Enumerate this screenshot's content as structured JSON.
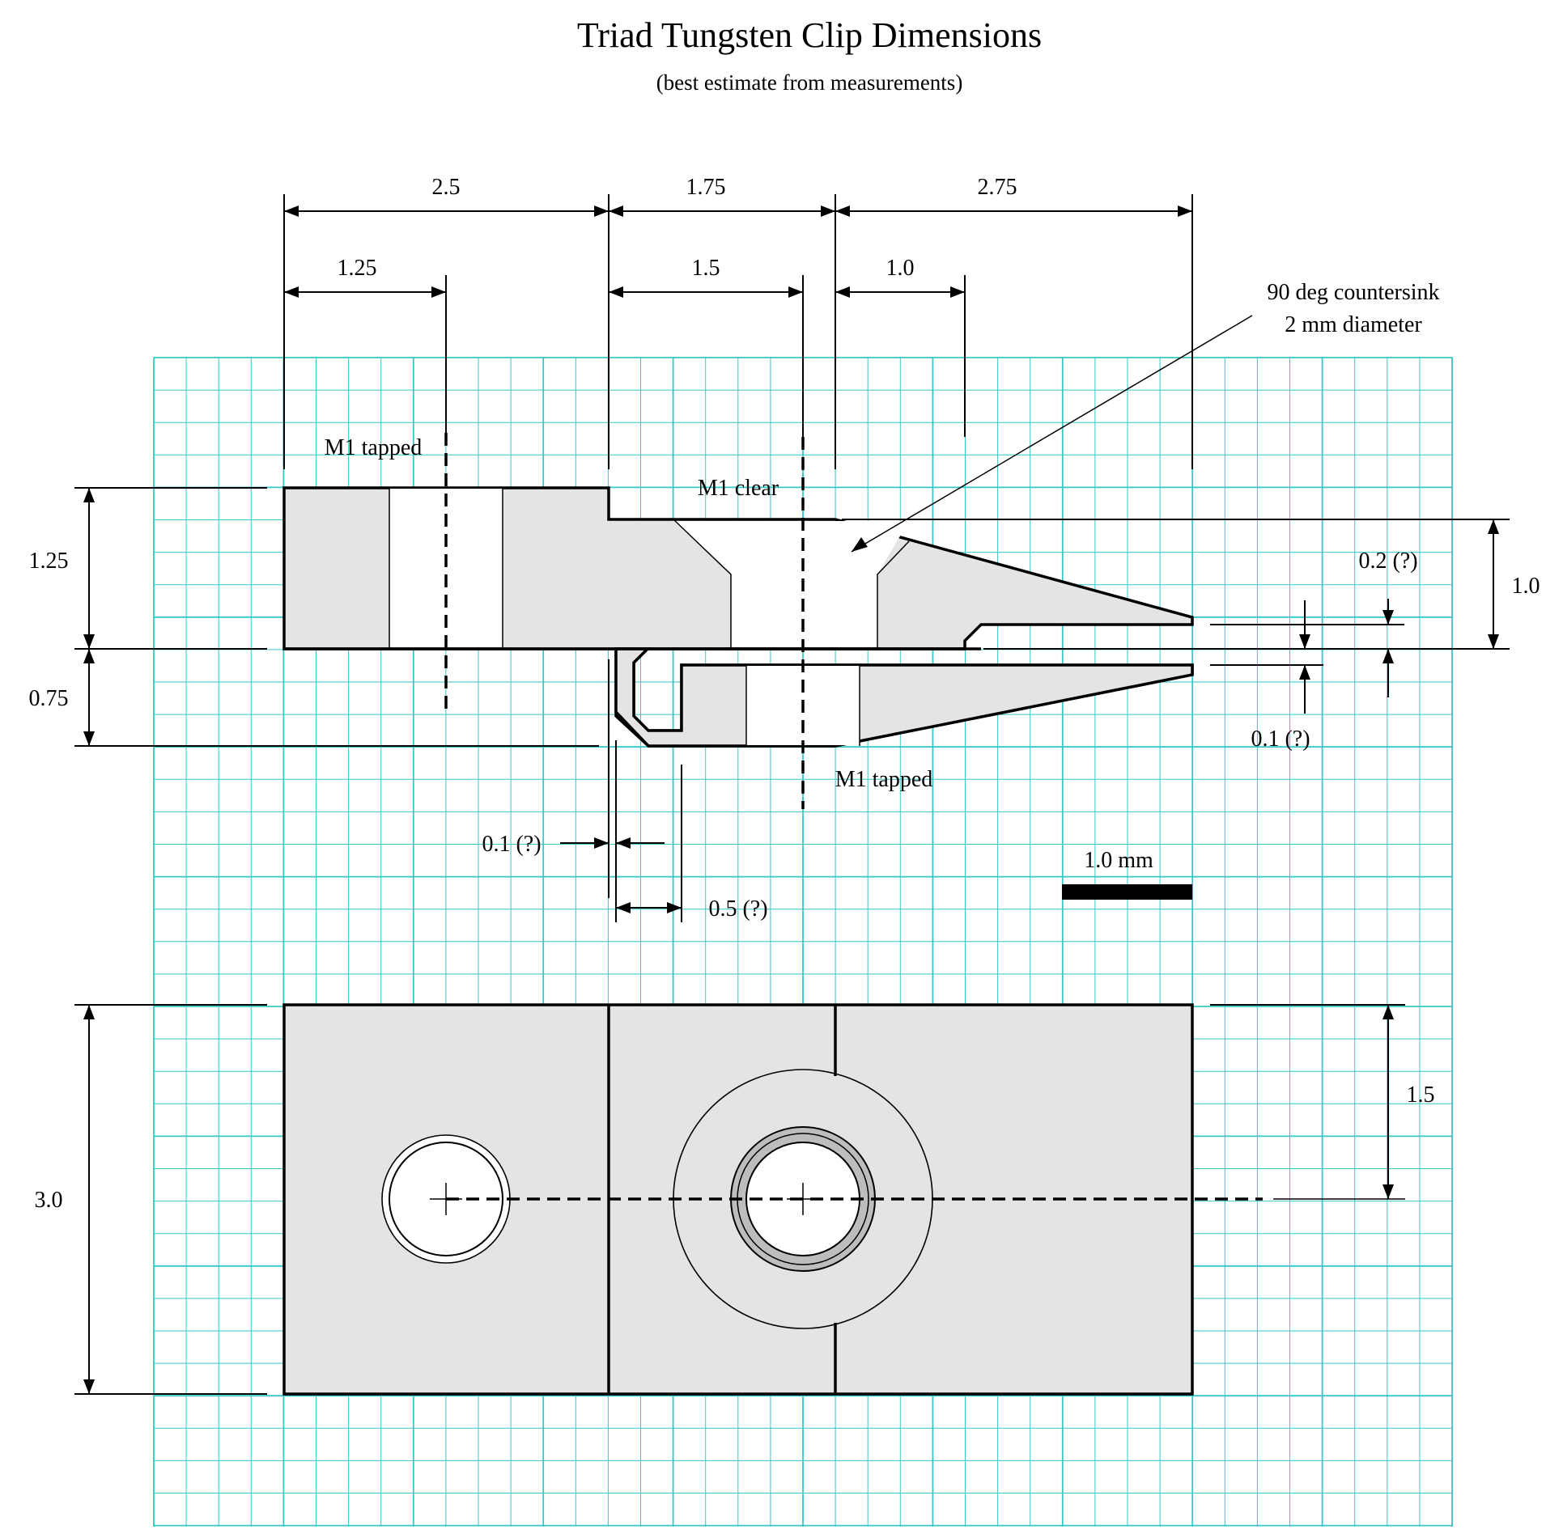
{
  "title": "Triad Tungsten Clip Dimensions",
  "subtitle": "(best estimate from measurements)",
  "top_dimensions": {
    "total_left": "2.5",
    "total_middle": "1.75",
    "total_right": "2.75",
    "hole_left": "1.25",
    "hole_middle": "1.5",
    "countersink_offset": "1.0"
  },
  "side_dimensions": {
    "upper_height": "1.25",
    "lower_height": "0.75",
    "right_height": "1.0",
    "plan_height": "3.0",
    "plan_half_height": "1.5"
  },
  "gap_dimensions": {
    "top_gap": "0.2 (?)",
    "bottom_gap": "0.1 (?)",
    "slot_gap": "0.1 (?)",
    "slot_width": "0.5 (?)"
  },
  "notes": {
    "countersink_line1": "90 deg countersink",
    "countersink_line2": "2 mm diameter",
    "m1_tapped_upper": "M1 tapped",
    "m1_clear": "M1 clear",
    "m1_tapped_lower": "M1 tapped"
  },
  "scale_bar": {
    "label": "1.0 mm",
    "value_mm": 1.0
  },
  "colors": {
    "grid": "#37c7c7",
    "part_fill": "#e4e4e4",
    "line": "#000000"
  }
}
